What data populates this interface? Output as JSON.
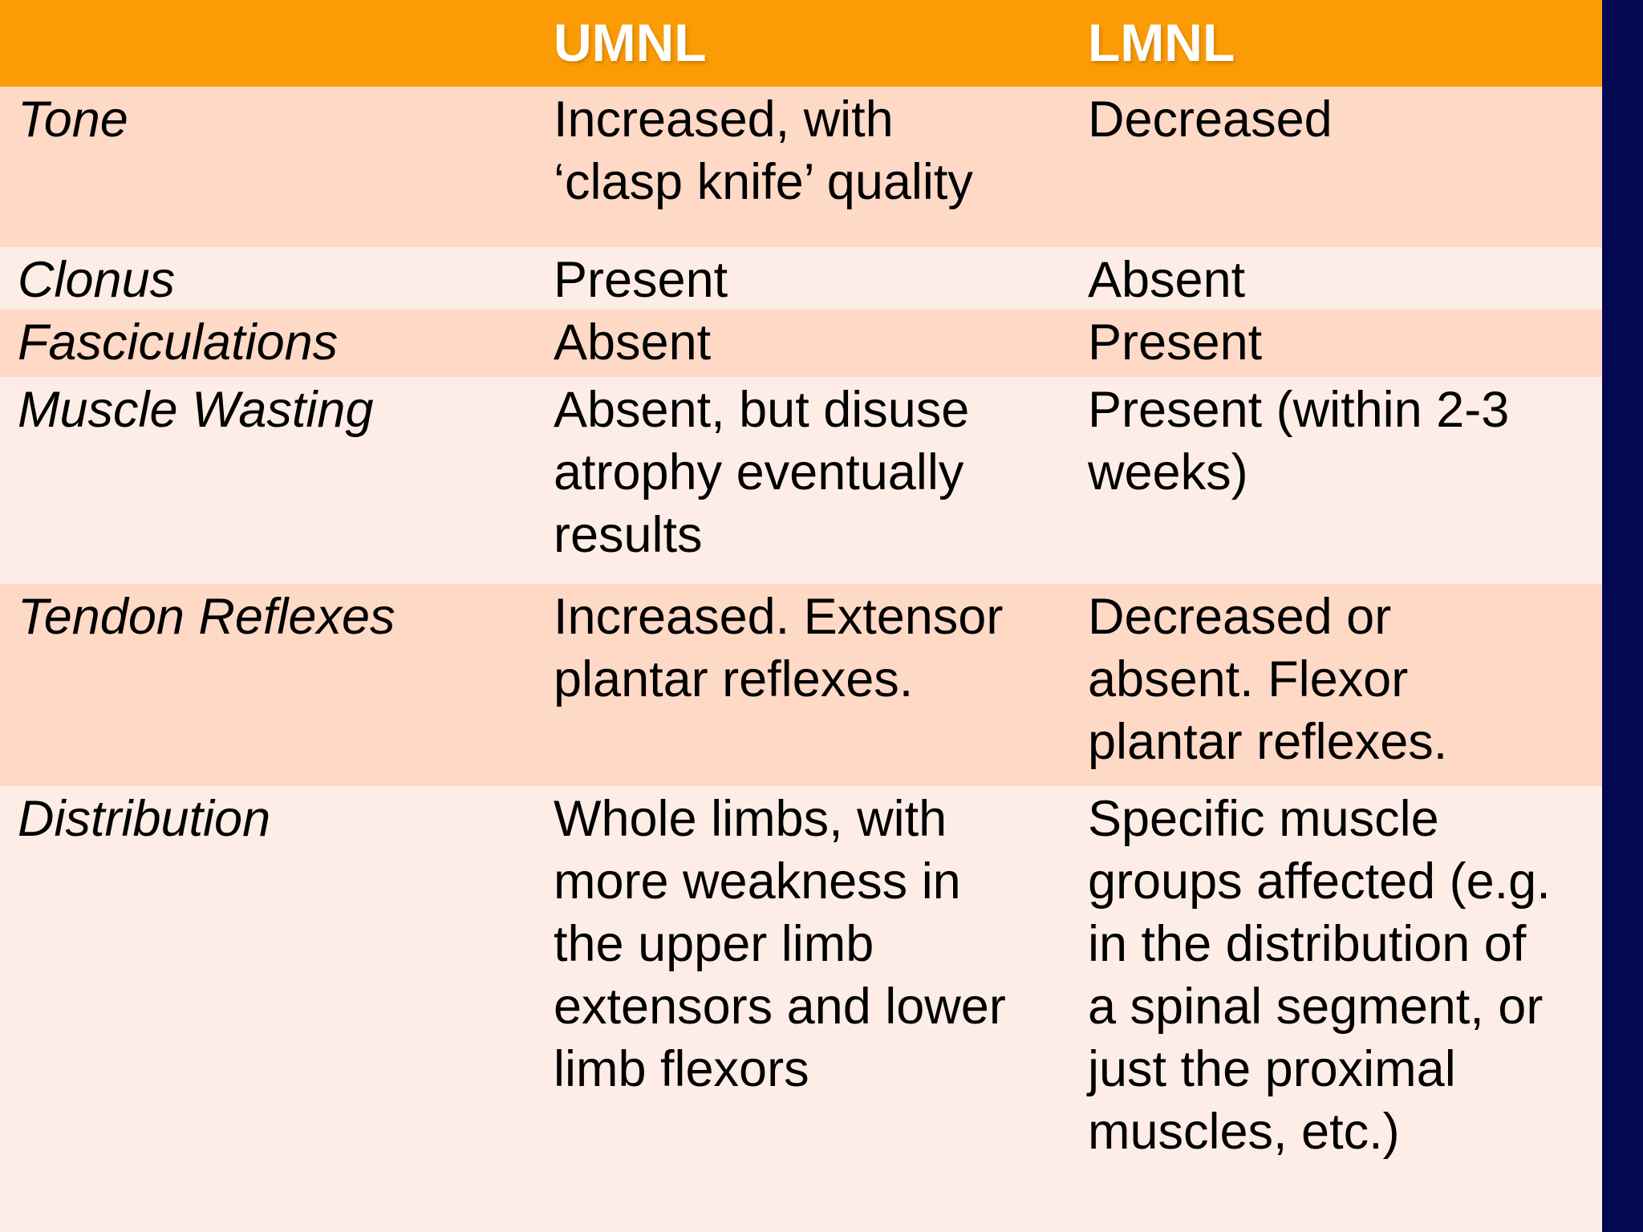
{
  "table": {
    "header": {
      "corner": "",
      "umnl": "UMNL",
      "lmnl": "LMNL"
    },
    "rows": [
      {
        "label": "Tone",
        "umnl": "Increased, with\n‘clasp knife’ quality",
        "lmnl": "Decreased"
      },
      {
        "label": "Clonus",
        "umnl": "Present",
        "lmnl": "Absent"
      },
      {
        "label": "Fasciculations",
        "umnl": "Absent",
        "lmnl": "Present"
      },
      {
        "label": "Muscle Wasting",
        "umnl": "Absent, but disuse\natrophy eventually\nresults",
        "lmnl": "Present (within 2-3\nweeks)"
      },
      {
        "label": "Tendon Reflexes",
        "umnl": "Increased. Extensor\nplantar reflexes.",
        "lmnl": "Decreased or\nabsent. Flexor\nplantar reflexes."
      },
      {
        "label": "Distribution",
        "umnl": "Whole limbs, with\nmore weakness in\nthe upper limb\nextensors and lower\nlimb flexors",
        "lmnl": "Specific muscle\ngroups affected (e.g.\nin the distribution of\na spinal segment, or\njust the proximal\nmuscles, etc.)"
      }
    ]
  },
  "colors": {
    "header_background": "#FB9C06",
    "header_text": "#FFFFFF",
    "row_peach": "#FDD9C6",
    "row_light": "#FEEDE7",
    "body_text": "#000000",
    "side_strip": "#020952"
  }
}
